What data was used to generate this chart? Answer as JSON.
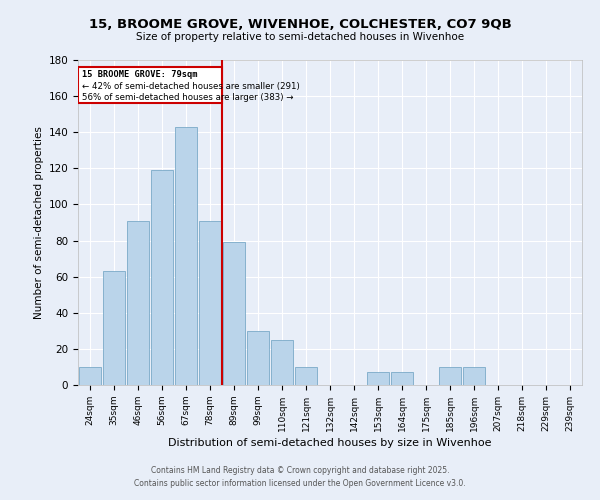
{
  "title1": "15, BROOME GROVE, WIVENHOE, COLCHESTER, CO7 9QB",
  "title2": "Size of property relative to semi-detached houses in Wivenhoe",
  "xlabel": "Distribution of semi-detached houses by size in Wivenhoe",
  "ylabel": "Number of semi-detached properties",
  "categories": [
    "24sqm",
    "35sqm",
    "46sqm",
    "56sqm",
    "67sqm",
    "78sqm",
    "89sqm",
    "99sqm",
    "110sqm",
    "121sqm",
    "132sqm",
    "142sqm",
    "153sqm",
    "164sqm",
    "175sqm",
    "185sqm",
    "196sqm",
    "207sqm",
    "218sqm",
    "229sqm",
    "239sqm"
  ],
  "values": [
    10,
    63,
    91,
    119,
    143,
    91,
    79,
    30,
    25,
    10,
    0,
    0,
    7,
    7,
    0,
    10,
    10,
    0,
    0,
    0,
    0
  ],
  "bar_color": "#bad4ea",
  "bar_edge_color": "#7aaac8",
  "annotation_title": "15 BROOME GROVE: 79sqm",
  "annotation_line1": "← 42% of semi-detached houses are smaller (291)",
  "annotation_line2": "56% of semi-detached houses are larger (383) →",
  "property_line_color": "#cc0000",
  "annotation_box_edge_color": "#cc0000",
  "ylim": [
    0,
    180
  ],
  "yticks": [
    0,
    20,
    40,
    60,
    80,
    100,
    120,
    140,
    160,
    180
  ],
  "background_color": "#e8eef8",
  "grid_color": "#ffffff",
  "footer1": "Contains HM Land Registry data © Crown copyright and database right 2025.",
  "footer2": "Contains public sector information licensed under the Open Government Licence v3.0."
}
